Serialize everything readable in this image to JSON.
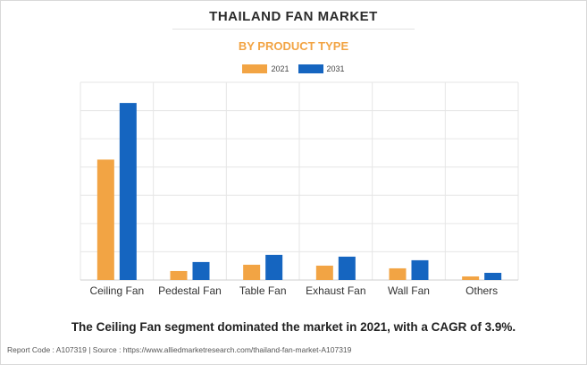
{
  "header": {
    "title": "THAILAND FAN MARKET",
    "subtitle": "BY PRODUCT TYPE"
  },
  "colors": {
    "series_2021": "#f2a444",
    "series_2031": "#1565c0",
    "subtitle": "#f2a444",
    "grid": "#e6e6e6"
  },
  "caption": "The Ceiling Fan segment dominated the market in 2021, with a CAGR of 3.9%.",
  "footer": "Report Code : A107319  |  Source : https://www.alliedmarketresearch.com/thailand-fan-market-A107319",
  "chart_data": {
    "type": "bar",
    "categories": [
      "Ceiling Fan",
      "Pedestal Fan",
      "Table Fan",
      "Exhaust Fan",
      "Wall Fan",
      "Others"
    ],
    "series": [
      {
        "name": "2021",
        "values": [
          134,
          10,
          17,
          16,
          13,
          4
        ]
      },
      {
        "name": "2031",
        "values": [
          197,
          20,
          28,
          26,
          22,
          8
        ]
      }
    ],
    "ylim": [
      0,
      220
    ],
    "grid": true,
    "legend_position": "top-center",
    "xlabel": "",
    "ylabel": ""
  }
}
